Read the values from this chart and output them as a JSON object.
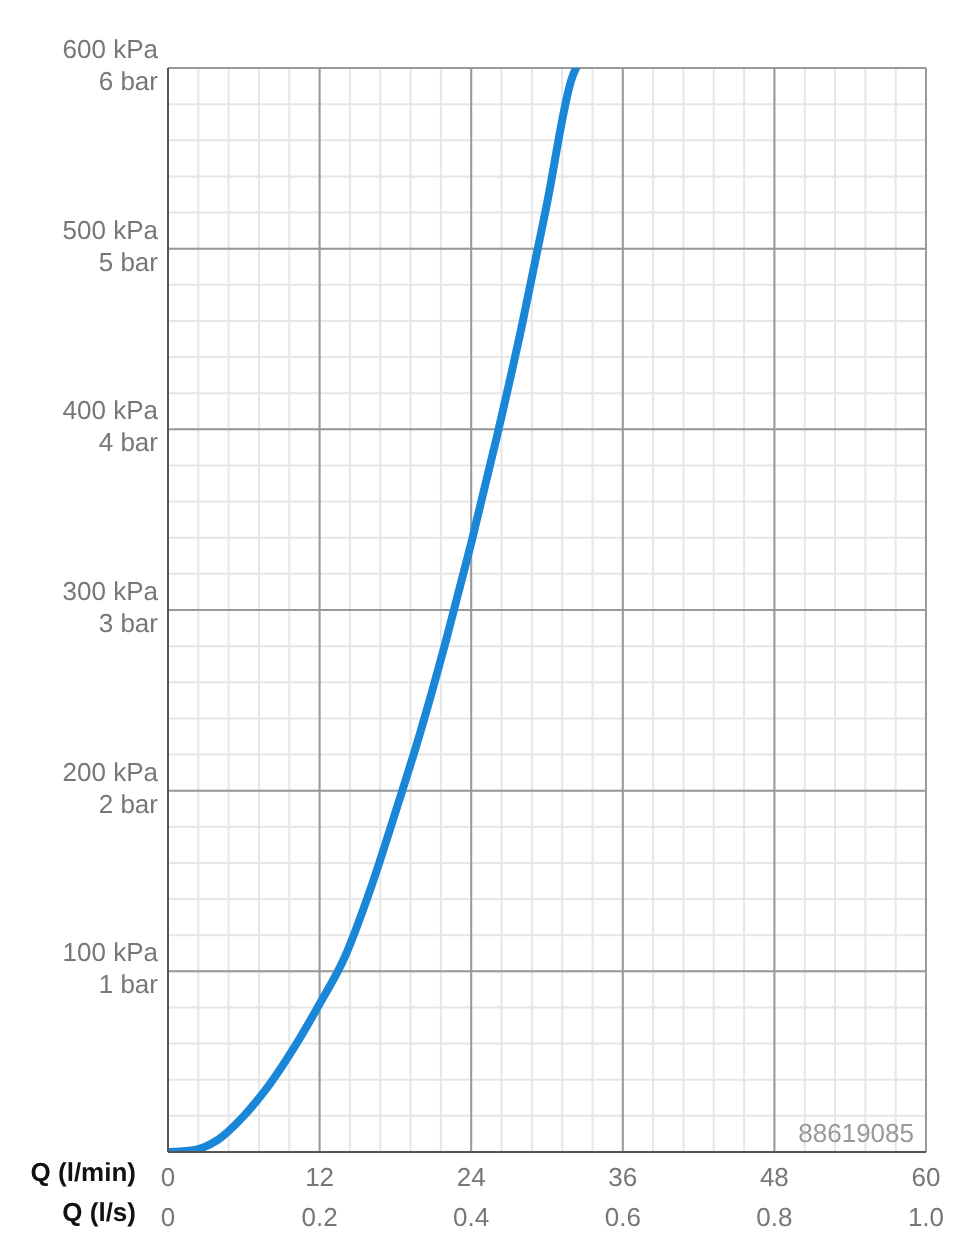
{
  "chart_data": {
    "type": "line",
    "xlabel": "Q (l/min)",
    "x2label": "Q (l/s)",
    "x": [
      0,
      2,
      4,
      6,
      8,
      10,
      12,
      14,
      16,
      18,
      20,
      22,
      24,
      26,
      28,
      30,
      32,
      32.3
    ],
    "series": [
      {
        "color": "#1a86d8",
        "values": [
          0,
          1,
          7,
          20,
          37,
          58,
          82,
          108,
          145,
          188,
          233,
          283,
          337,
          395,
          457,
          525,
          595,
          600
        ]
      }
    ],
    "xlim": [
      0,
      60
    ],
    "xticks": [
      0,
      12,
      24,
      36,
      48,
      60
    ],
    "x2lim": [
      0,
      1
    ],
    "x2ticks": [
      0,
      {
        "value": 0.2,
        "label": "0.2"
      },
      {
        "value": 0.4,
        "label": "0.4"
      },
      {
        "value": 0.6,
        "label": "0.6"
      },
      {
        "value": 0.8,
        "label": "0.8"
      },
      {
        "value": 1,
        "label": "1.0"
      }
    ],
    "ylim": [
      0,
      600
    ],
    "yticks": [
      {
        "value": 100,
        "label": "100 kPa"
      },
      {
        "value": 200,
        "label": "200 kPa"
      },
      {
        "value": 300,
        "label": "300 kPa"
      },
      {
        "value": 400,
        "label": "400 kPa"
      },
      {
        "value": 500,
        "label": "500 kPa"
      },
      {
        "value": 600,
        "label": "600 kPa"
      }
    ],
    "y2lim": [
      0,
      6
    ],
    "y2ticks": [
      {
        "value": 1,
        "label": "1 bar"
      },
      {
        "value": 2,
        "label": "2 bar"
      },
      {
        "value": 3,
        "label": "3 bar"
      },
      {
        "value": 4,
        "label": "4 bar"
      },
      {
        "value": 5,
        "label": "5 bar"
      },
      {
        "value": 6,
        "label": "6 bar"
      }
    ],
    "grid": true,
    "marker": "none",
    "line_style": "solid",
    "annotations": [
      "88619085"
    ]
  }
}
